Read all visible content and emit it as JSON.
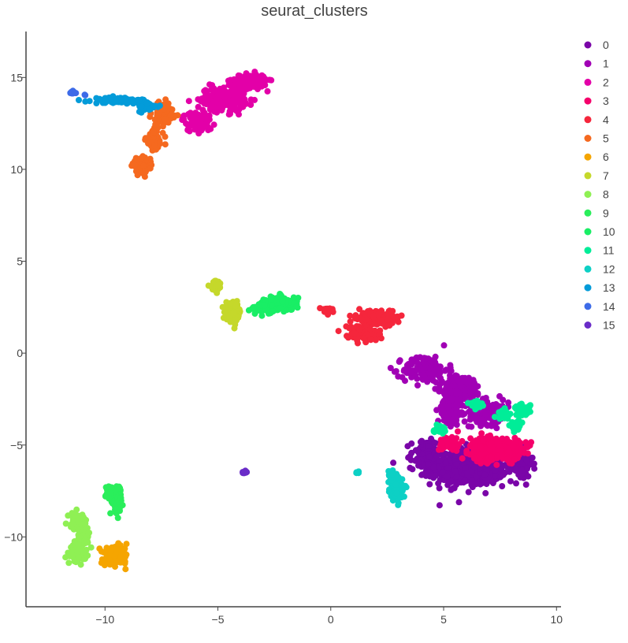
{
  "chart_data": {
    "type": "scatter",
    "title": "seurat_clusters",
    "xlabel": "",
    "ylabel": "",
    "xlim": [
      -13.5,
      10.2
    ],
    "ylim": [
      -13.8,
      17.5
    ],
    "x_ticks": [
      -10,
      -5,
      0,
      5,
      10
    ],
    "y_ticks": [
      -10,
      -5,
      0,
      5,
      10,
      15
    ],
    "x_tick_labels": [
      "−10",
      "−5",
      "0",
      "5",
      "10"
    ],
    "y_tick_labels": [
      "−10",
      "−5",
      "0",
      "5",
      "10",
      "15"
    ],
    "grid": false,
    "legend_position": "right",
    "series": [
      {
        "name": "0",
        "color": "#7A05A8",
        "cluster_points": [
          [
            6.1,
            -6.2,
            1.5,
            0.9,
            650
          ],
          [
            4.2,
            -5.5,
            0.6,
            0.7,
            120
          ],
          [
            8.4,
            -6.0,
            0.5,
            0.8,
            90
          ]
        ]
      },
      {
        "name": "1",
        "color": "#A100B5",
        "cluster_points": [
          [
            4.2,
            -0.9,
            0.9,
            0.7,
            140
          ],
          [
            5.8,
            -1.9,
            0.8,
            0.6,
            170
          ],
          [
            7.0,
            -3.2,
            0.8,
            0.6,
            140
          ],
          [
            5.3,
            -3.3,
            0.5,
            0.6,
            80
          ]
        ]
      },
      {
        "name": "2",
        "color": "#E300A8",
        "cluster_points": [
          [
            -3.6,
            14.8,
            0.7,
            0.35,
            140
          ],
          [
            -4.8,
            13.8,
            0.9,
            0.6,
            220
          ],
          [
            -5.9,
            12.6,
            0.6,
            0.5,
            70
          ]
        ]
      },
      {
        "name": "3",
        "color": "#F5006B",
        "cluster_points": [
          [
            7.3,
            -5.2,
            1.0,
            0.55,
            420
          ],
          [
            5.3,
            -4.9,
            0.45,
            0.4,
            60
          ]
        ]
      },
      {
        "name": "4",
        "color": "#F5263C",
        "cluster_points": [
          [
            1.4,
            1.1,
            0.6,
            0.4,
            130
          ],
          [
            1.7,
            2.0,
            0.5,
            0.3,
            60
          ],
          [
            2.4,
            1.9,
            0.6,
            0.35,
            90
          ],
          [
            -0.2,
            2.3,
            0.25,
            0.15,
            12
          ]
        ]
      },
      {
        "name": "5",
        "color": "#F5691F",
        "cluster_points": [
          [
            -7.4,
            13.1,
            0.5,
            0.5,
            90
          ],
          [
            -7.8,
            11.6,
            0.35,
            0.6,
            80
          ],
          [
            -8.4,
            10.2,
            0.35,
            0.35,
            70
          ]
        ]
      },
      {
        "name": "6",
        "color": "#F5A500",
        "cluster_points": [
          [
            -9.5,
            -11.0,
            0.45,
            0.4,
            180
          ],
          [
            -9.9,
            -11.3,
            0.2,
            0.2,
            20
          ]
        ]
      },
      {
        "name": "7",
        "color": "#C5D82B",
        "cluster_points": [
          [
            -4.3,
            2.2,
            0.3,
            0.45,
            110
          ],
          [
            -5.1,
            3.7,
            0.25,
            0.3,
            30
          ]
        ]
      },
      {
        "name": "8",
        "color": "#8FF054",
        "cluster_points": [
          [
            -11.2,
            -10.9,
            0.3,
            0.4,
            100
          ],
          [
            -11.2,
            -9.1,
            0.35,
            0.4,
            70
          ],
          [
            -10.9,
            -10.0,
            0.2,
            0.5,
            40
          ]
        ]
      },
      {
        "name": "9",
        "color": "#2AEE5B",
        "cluster_points": [
          [
            -9.5,
            -7.9,
            0.2,
            0.6,
            110
          ],
          [
            -9.8,
            -7.6,
            0.15,
            0.4,
            30
          ]
        ]
      },
      {
        "name": "10",
        "color": "#19EE65",
        "cluster_points": [
          [
            -2.2,
            2.7,
            0.65,
            0.35,
            150
          ],
          [
            -3.0,
            2.4,
            0.45,
            0.25,
            40
          ]
        ]
      },
      {
        "name": "11",
        "color": "#00ED98",
        "cluster_points": [
          [
            8.5,
            -3.1,
            0.3,
            0.3,
            60
          ],
          [
            7.7,
            -3.3,
            0.3,
            0.25,
            30
          ],
          [
            6.4,
            -2.8,
            0.3,
            0.2,
            25
          ],
          [
            8.2,
            -4.0,
            0.25,
            0.3,
            25
          ],
          [
            4.8,
            -4.2,
            0.3,
            0.2,
            15
          ]
        ]
      },
      {
        "name": "12",
        "color": "#0DD0C5",
        "cluster_points": [
          [
            2.9,
            -7.4,
            0.25,
            0.55,
            90
          ],
          [
            2.7,
            -6.6,
            0.2,
            0.3,
            25
          ],
          [
            1.2,
            -6.5,
            0.08,
            0.05,
            4
          ]
        ]
      },
      {
        "name": "13",
        "color": "#039BD9",
        "cluster_points": [
          [
            -9.3,
            13.75,
            1.1,
            0.15,
            90
          ],
          [
            -8.1,
            13.4,
            0.4,
            0.25,
            40
          ]
        ]
      },
      {
        "name": "14",
        "color": "#3D6BE8",
        "cluster_points": [
          [
            -11.4,
            14.15,
            0.12,
            0.12,
            10
          ],
          [
            -10.9,
            14.05,
            0.05,
            0.05,
            2
          ]
        ]
      },
      {
        "name": "15",
        "color": "#6A2CC8",
        "cluster_points": [
          [
            -3.8,
            -6.5,
            0.12,
            0.1,
            12
          ]
        ]
      }
    ]
  }
}
